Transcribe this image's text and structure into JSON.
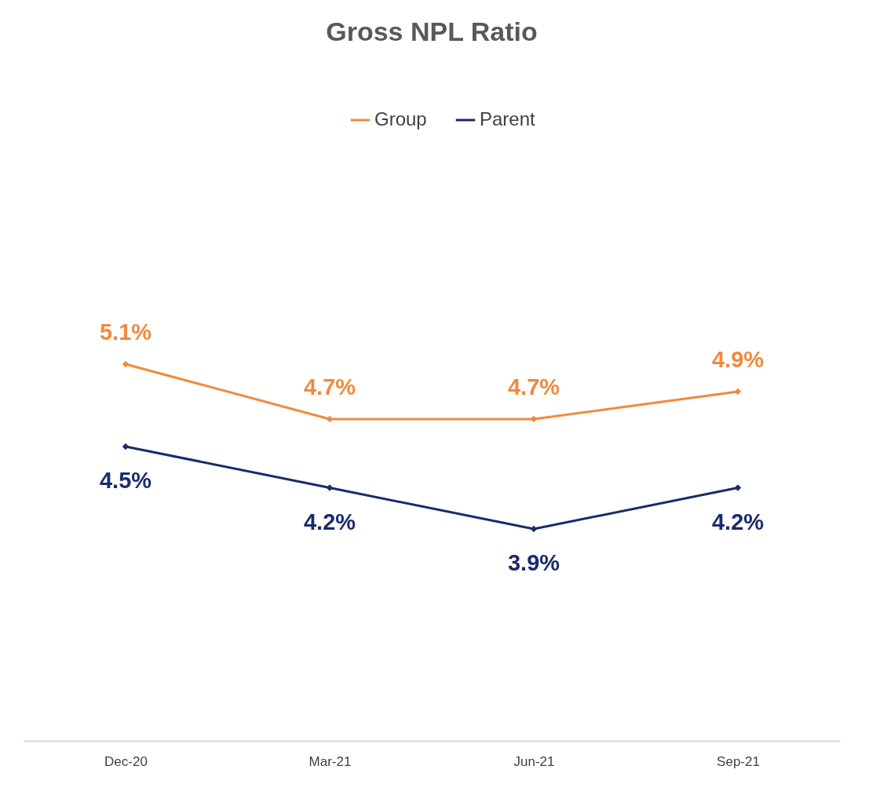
{
  "chart_data": {
    "type": "line",
    "title": "Gross NPL Ratio",
    "categories": [
      "Dec-20",
      "Mar-21",
      "Jun-21",
      "Sep-21"
    ],
    "legend": "top",
    "marker": "diamond",
    "series": [
      {
        "name": "Group",
        "color": "#f08a3c",
        "values": [
          5.1,
          4.7,
          4.7,
          4.9
        ],
        "value_labels": [
          "5.1%",
          "4.7%",
          "4.7%",
          "4.9%"
        ]
      },
      {
        "name": "Parent",
        "color": "#1a2a6c",
        "values": [
          4.5,
          4.2,
          3.9,
          4.2
        ],
        "value_labels": [
          "4.5%",
          "4.2%",
          "3.9%",
          "4.2%"
        ]
      }
    ]
  }
}
